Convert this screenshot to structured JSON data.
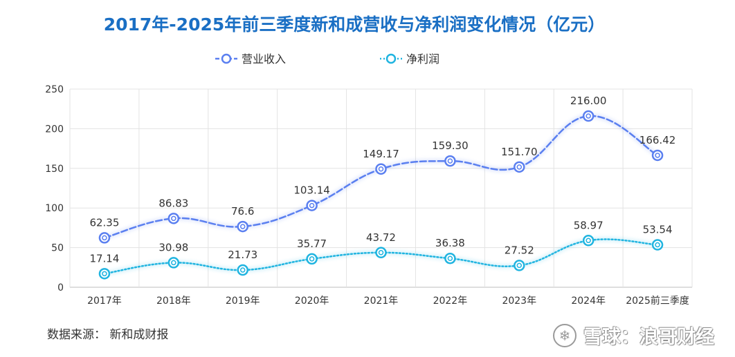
{
  "chart_data": {
    "type": "line",
    "title": "2017年-2025年前三季度新和成营收与净利润变化情况（亿元）",
    "categories": [
      "2017年",
      "2018年",
      "2019年",
      "2020年",
      "2021年",
      "2022年",
      "2023年",
      "2024年",
      "2025前三季度"
    ],
    "series": [
      {
        "name": "营业收入",
        "values": [
          62.35,
          86.83,
          76.6,
          103.14,
          149.17,
          159.3,
          151.7,
          216.0,
          166.42
        ],
        "labels": [
          "62.35",
          "86.83",
          "76.6",
          "103.14",
          "149.17",
          "159.30",
          "151.70",
          "216.00",
          "166.42"
        ],
        "color": "#5a7ff0",
        "line_style": "dashed"
      },
      {
        "name": "净利润",
        "values": [
          17.14,
          30.98,
          21.73,
          35.77,
          43.72,
          36.38,
          27.52,
          58.97,
          53.54
        ],
        "labels": [
          "17.14",
          "30.98",
          "21.73",
          "35.77",
          "43.72",
          "36.38",
          "27.52",
          "58.97",
          "53.54"
        ],
        "color": "#1fb4e0",
        "line_style": "dotted"
      }
    ],
    "y_ticks": [
      "0",
      "50",
      "100",
      "150",
      "200",
      "250"
    ],
    "ylim": [
      0,
      250
    ],
    "grid": true,
    "legend_position": "top-center"
  },
  "source": "数据来源：  新和成财报",
  "watermark": {
    "logo": "❄",
    "text": "雪球：浪哥财经"
  },
  "colors": {
    "title": "#1a6fc4",
    "grid": "#e3e3e3"
  }
}
